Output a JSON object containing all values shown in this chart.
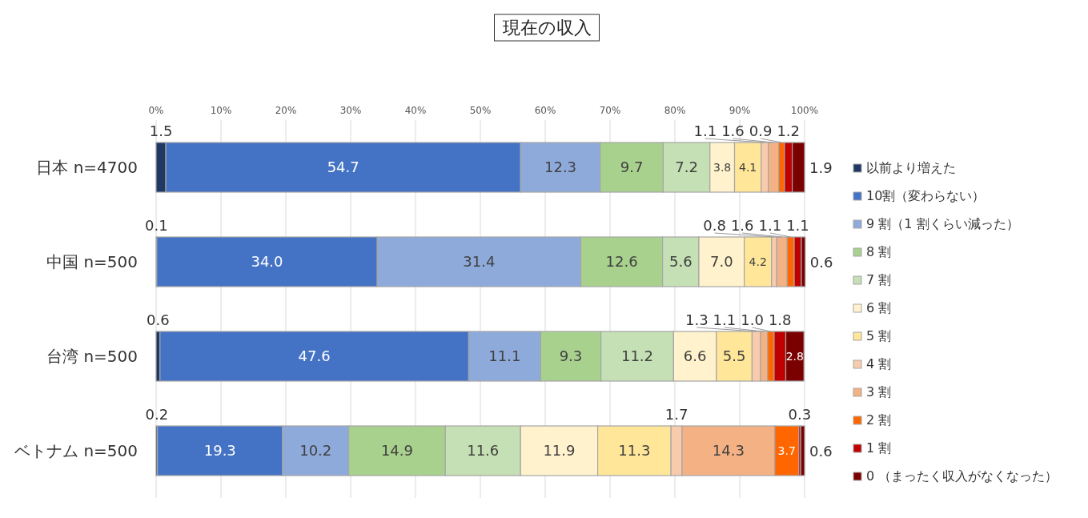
{
  "chart_data": {
    "type": "bar",
    "orientation": "horizontal",
    "stacked": true,
    "title": "現在の収入",
    "categories": [
      "日本 n=4700",
      "中国 n=500",
      "台湾 n=500",
      "ベトナム n=500"
    ],
    "xlim": [
      0,
      100
    ],
    "xticks": [
      {
        "value": 0,
        "label": "0%"
      },
      {
        "value": 10,
        "label": "10%"
      },
      {
        "value": 20,
        "label": "20%"
      },
      {
        "value": 30,
        "label": "30%"
      },
      {
        "value": 40,
        "label": "40%"
      },
      {
        "value": 50,
        "label": "50%"
      },
      {
        "value": 60,
        "label": "60%"
      },
      {
        "value": 70,
        "label": "70%"
      },
      {
        "value": 80,
        "label": "80%"
      },
      {
        "value": 90,
        "label": "90%"
      },
      {
        "value": 100,
        "label": "100%"
      }
    ],
    "grid": "x",
    "legend": "right",
    "series": [
      {
        "name": "以前より増えた",
        "color": "#1f3864",
        "values": [
          1.5,
          0.1,
          0.6,
          0.2
        ],
        "value_labels": [
          "1.5",
          "0.1",
          "0.6",
          "0.2"
        ]
      },
      {
        "name": "10割（変わらない）",
        "color": "#4472c4",
        "values": [
          54.7,
          34.0,
          47.6,
          19.3
        ],
        "value_labels": [
          "54.7",
          "34.0",
          "47.6",
          "19.3"
        ]
      },
      {
        "name": "9 割（1 割くらい減った）",
        "color": "#8eaadb",
        "values": [
          12.3,
          31.4,
          11.1,
          10.2
        ],
        "value_labels": [
          "12.3",
          "31.4",
          "11.1",
          "10.2"
        ]
      },
      {
        "name": "8 割",
        "color": "#a9d18e",
        "values": [
          9.7,
          12.6,
          9.3,
          14.9
        ],
        "value_labels": [
          "9.7",
          "12.6",
          "9.3",
          "14.9"
        ]
      },
      {
        "name": "7 割",
        "color": "#c5e0b4",
        "values": [
          7.2,
          5.6,
          11.2,
          11.6
        ],
        "value_labels": [
          "7.2",
          "5.6",
          "11.2",
          "11.6"
        ]
      },
      {
        "name": "6 割",
        "color": "#fff2cc",
        "values": [
          3.8,
          7.0,
          6.6,
          11.9
        ],
        "value_labels": [
          "3.8",
          "7.0",
          "6.6",
          "11.9"
        ]
      },
      {
        "name": "5 割",
        "color": "#ffe699",
        "values": [
          4.1,
          4.2,
          5.5,
          11.3
        ],
        "value_labels": [
          "4.1",
          "4.2",
          "5.5",
          "11.3"
        ]
      },
      {
        "name": "4 割",
        "color": "#f8cbad",
        "values": [
          1.1,
          0.8,
          1.3,
          1.7
        ],
        "value_labels": [
          "1.1",
          "0.8",
          "1.3",
          "1.7"
        ]
      },
      {
        "name": "3 割",
        "color": "#f4b183",
        "values": [
          1.6,
          1.6,
          1.1,
          14.3
        ],
        "value_labels": [
          "1.6",
          "1.6",
          "1.1",
          "14.3"
        ]
      },
      {
        "name": "2 割",
        "color": "#ff6600",
        "values": [
          0.9,
          1.1,
          1.0,
          3.7
        ],
        "value_labels": [
          "0.9",
          "1.1",
          "1.0",
          "3.7"
        ]
      },
      {
        "name": "1 割",
        "color": "#c00000",
        "values": [
          1.2,
          1.1,
          1.8,
          0.3
        ],
        "value_labels": [
          "1.2",
          "1.1",
          "1.8",
          "0.3"
        ]
      },
      {
        "name": "0 （まったく収入がなくなった）",
        "color": "#7b0000",
        "values": [
          1.9,
          0.6,
          2.8,
          0.6
        ],
        "value_labels": [
          "1.9",
          "0.6",
          "2.8",
          "0.6"
        ]
      }
    ]
  }
}
